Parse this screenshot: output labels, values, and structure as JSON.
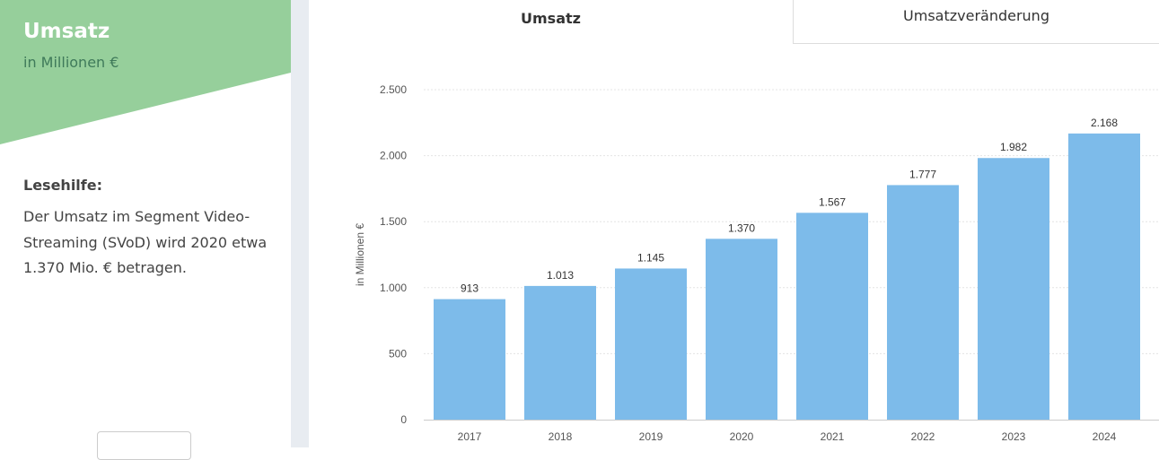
{
  "sidebar": {
    "title": "Umsatz",
    "subtitle": "in Millionen €",
    "help_heading": "Lesehilfe:",
    "help_text": "Der Umsatz im Segment Video-Streaming (SVoD) wird 2020 etwa 1.370 Mio. € betragen.",
    "accent": "#96cf9b"
  },
  "tabs": [
    {
      "label": "Umsatz",
      "active": true
    },
    {
      "label": "Umsatzveränderung",
      "active": false
    }
  ],
  "chart_data": {
    "type": "bar",
    "categories": [
      "2017",
      "2018",
      "2019",
      "2020",
      "2021",
      "2022",
      "2023",
      "2024"
    ],
    "values": [
      913,
      1013,
      1145,
      1370,
      1567,
      1777,
      1982,
      2168
    ],
    "data_labels": [
      "913",
      "1.013",
      "1.145",
      "1.370",
      "1.567",
      "1.777",
      "1.982",
      "2.168"
    ],
    "ylabel": "in Millionen €",
    "ylim": [
      0,
      2500
    ],
    "yticks": [
      0,
      500,
      1000,
      1500,
      2000,
      2500
    ],
    "ytick_labels": [
      "0",
      "500",
      "1.000",
      "1.500",
      "2.000",
      "2.500"
    ],
    "grid": true,
    "bar_color": "#7dbbea"
  }
}
